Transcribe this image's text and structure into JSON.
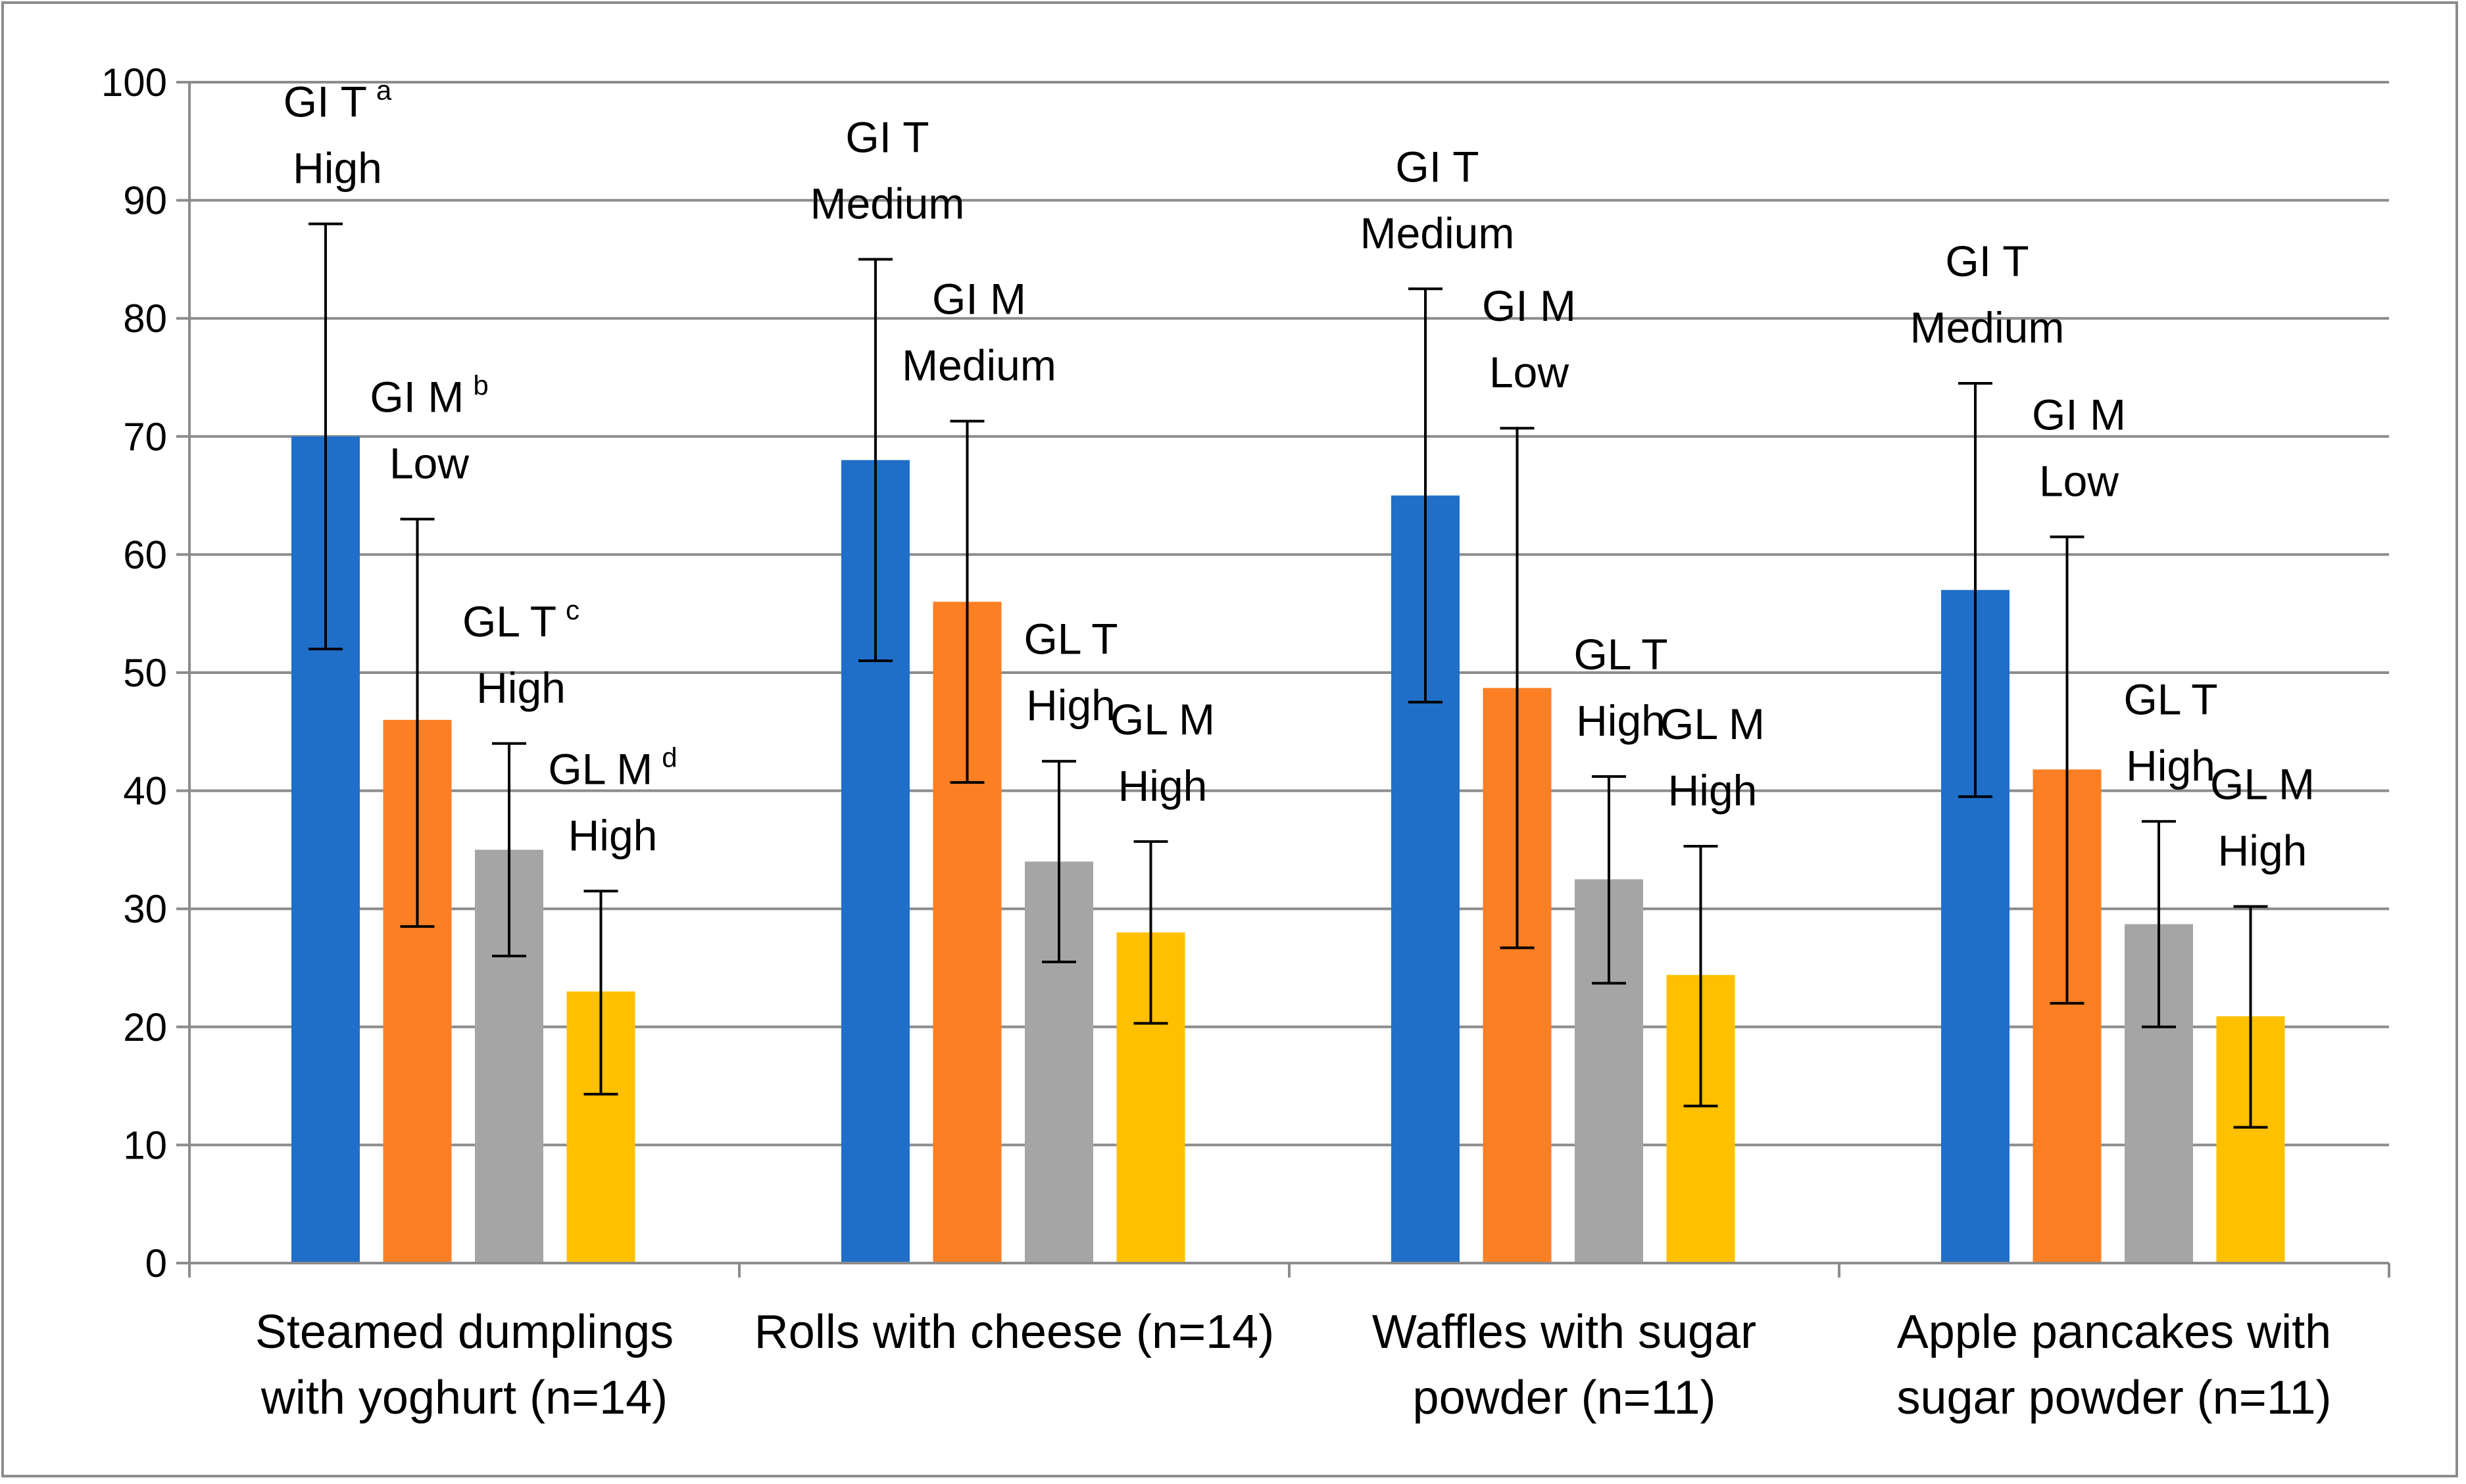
{
  "chart_data": {
    "type": "bar",
    "title": "",
    "xlabel": "",
    "ylabel": "",
    "ylim": [
      0,
      100
    ],
    "yticks": [
      "0",
      "10",
      "20",
      "30",
      "40",
      "50",
      "60",
      "70",
      "80",
      "90",
      "100"
    ],
    "grid": true,
    "legend": "none",
    "categories": [
      [
        "Steamed dumplings",
        "with yoghurt (n=14)"
      ],
      [
        "Rolls with cheese (n=14)"
      ],
      [
        "Waffles with sugar",
        "powder (n=11)"
      ],
      [
        "Apple pancakes with",
        "sugar powder (n=11)"
      ]
    ],
    "series": [
      {
        "name": "GI T",
        "color": "#1f6fc9",
        "values": [
          70,
          68,
          65,
          57
        ],
        "err_low": [
          52,
          51,
          47.5,
          39.5
        ],
        "err_high": [
          88,
          85,
          82.5,
          74.5
        ]
      },
      {
        "name": "GI M",
        "color": "#fd7f24",
        "values": [
          46,
          56,
          48.7,
          41.8
        ],
        "err_low": [
          28.5,
          40.7,
          26.7,
          22
        ],
        "err_high": [
          63,
          71.3,
          70.7,
          61.5
        ]
      },
      {
        "name": "GL T",
        "color": "#a5a5a5",
        "values": [
          35,
          34,
          32.5,
          28.7
        ],
        "err_low": [
          26,
          25.5,
          23.7,
          20
        ],
        "err_high": [
          44,
          42.5,
          41.2,
          37.4
        ]
      },
      {
        "name": "GL M",
        "color": "#ffc000",
        "values": [
          23,
          28,
          24.4,
          20.9
        ],
        "err_low": [
          14.3,
          20.3,
          13.3,
          11.5
        ],
        "err_high": [
          31.5,
          35.7,
          35.3,
          30.2
        ]
      }
    ],
    "annotations": [
      [
        {
          "label": "GI T",
          "sup": "a",
          "level": "High"
        },
        {
          "label": "GI M",
          "sup": "b",
          "level": "Low"
        },
        {
          "label": "GL T",
          "sup": "c",
          "level": "High"
        },
        {
          "label": "GL M",
          "sup": "d",
          "level": "High"
        }
      ],
      [
        {
          "label": "GI T",
          "sup": "",
          "level": "Medium"
        },
        {
          "label": "GI M",
          "sup": "",
          "level": "Medium"
        },
        {
          "label": "GL T",
          "sup": "",
          "level": "High"
        },
        {
          "label": "GL M",
          "sup": "",
          "level": "High"
        }
      ],
      [
        {
          "label": "GI T",
          "sup": "",
          "level": "Medium"
        },
        {
          "label": "GI M",
          "sup": "",
          "level": "Low"
        },
        {
          "label": "GL T",
          "sup": "",
          "level": "High"
        },
        {
          "label": "GL M",
          "sup": "",
          "level": "High"
        }
      ],
      [
        {
          "label": "GI T",
          "sup": "",
          "level": "Medium"
        },
        {
          "label": "GI M",
          "sup": "",
          "level": "Low"
        },
        {
          "label": "GL T",
          "sup": "",
          "level": "High"
        },
        {
          "label": "GL M",
          "sup": "",
          "level": "High"
        }
      ]
    ],
    "colors": {
      "grid": "#8c8c8c",
      "axis": "#8c8c8c",
      "error_bar": "#000000"
    }
  }
}
